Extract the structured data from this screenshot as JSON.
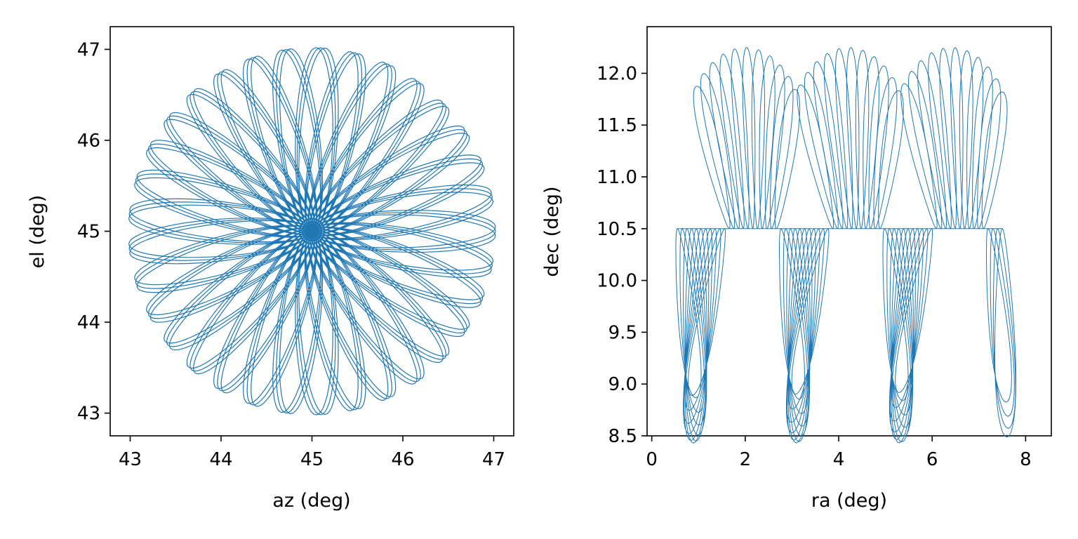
{
  "chart_data": [
    {
      "type": "line",
      "xlabel": "az (deg)",
      "ylabel": "el (deg)",
      "xlim": [
        42.78,
        47.22
      ],
      "ylim": [
        42.75,
        47.25
      ],
      "xticks": [
        43,
        44,
        45,
        46,
        47
      ],
      "yticks": [
        43,
        44,
        45,
        46,
        47
      ],
      "grid": false,
      "color": "#1f77b4",
      "series": [
        {
          "curve": "rosette (rhodonea-like daisy pattern)",
          "center": [
            45,
            45
          ],
          "outer_radius": 2.02,
          "petal_count": 33,
          "petal_length": 2.02,
          "petal_width": 0.41,
          "passes": 3,
          "pass_rotation_deg": 1.4
        }
      ]
    },
    {
      "type": "line",
      "xlabel": "ra (deg)",
      "ylabel": "dec (deg)",
      "xlim": [
        -0.1,
        8.55
      ],
      "ylim": [
        8.5,
        12.45
      ],
      "xticks": [
        0,
        2,
        4,
        6,
        8
      ],
      "yticks": [
        8.5,
        9.0,
        9.5,
        10.0,
        10.5,
        11.0,
        11.5,
        12.0
      ],
      "ytick_labels": [
        "8.5",
        "9.0",
        "9.5",
        "10.0",
        "10.5",
        "11.0",
        "11.5",
        "12.0"
      ],
      "grid": false,
      "color": "#1f77b4",
      "series": [
        {
          "curve": "rosette loops drifting in ra",
          "start": [
            0.55,
            9.4
          ],
          "end": [
            7.5,
            9.95
          ],
          "loop_count": 70,
          "center_dec": 10.5,
          "dec_extent": [
            8.7,
            12.28
          ],
          "ra_extent": [
            0.43,
            8.02
          ]
        }
      ]
    }
  ]
}
